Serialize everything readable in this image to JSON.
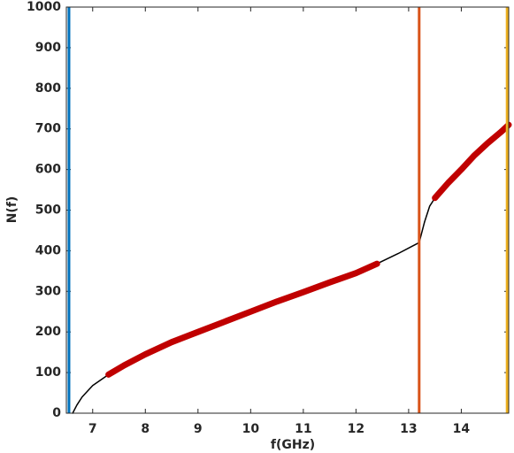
{
  "chart_data": {
    "type": "line",
    "xlabel": "f(GHz)",
    "ylabel": "N(f)",
    "xlim": [
      6.5,
      14.9
    ],
    "ylim": [
      0,
      1000
    ],
    "xticks": [
      7,
      8,
      9,
      10,
      11,
      12,
      13,
      14
    ],
    "yticks": [
      0,
      100,
      200,
      300,
      400,
      500,
      600,
      700,
      800,
      900,
      1000
    ],
    "series": [
      {
        "color": "#000000",
        "width": 1.5,
        "x": [
          6.62,
          6.7,
          6.8,
          7.0,
          7.3,
          7.6,
          8.0,
          8.5,
          9.0,
          9.5,
          10.0,
          10.5,
          11.0,
          11.5,
          12.0,
          12.4,
          12.8,
          13.05,
          13.2,
          13.3,
          13.4,
          13.5,
          14.0,
          14.5,
          14.9
        ],
        "values": [
          0,
          20,
          40,
          68,
          95,
          118,
          145,
          175,
          200,
          225,
          250,
          275,
          298,
          322,
          345,
          368,
          393,
          410,
          420,
          470,
          510,
          530,
          600,
          665,
          710
        ]
      },
      {
        "color": "#c00000",
        "width": 7,
        "x": [
          7.3,
          7.6,
          8.0,
          8.5,
          9.0,
          9.5,
          10.0,
          10.5,
          11.0,
          11.5,
          12.0,
          12.4
        ],
        "values": [
          95,
          118,
          145,
          175,
          200,
          225,
          250,
          275,
          298,
          322,
          345,
          368
        ]
      },
      {
        "color": "#c00000",
        "width": 7,
        "x": [
          13.5,
          13.75,
          14.0,
          14.25,
          14.5,
          14.75,
          14.9
        ],
        "values": [
          530,
          567,
          600,
          635,
          665,
          692,
          710
        ]
      }
    ],
    "vlines": [
      {
        "x": 6.55,
        "color": "#0072bd"
      },
      {
        "x": 13.2,
        "color": "#d95319"
      },
      {
        "x": 14.87,
        "color": "#edb120"
      }
    ]
  }
}
